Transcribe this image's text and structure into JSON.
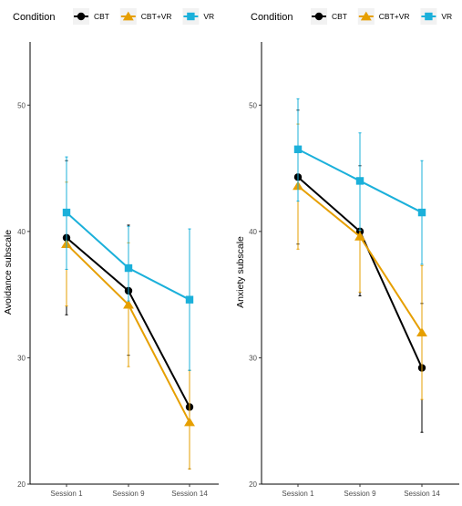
{
  "chart_data": [
    {
      "type": "line",
      "title": "",
      "xlabel": "",
      "ylabel": "Avoidance subscale",
      "categories": [
        "Session 1",
        "Session 9",
        "Session 14"
      ],
      "ylim": [
        20,
        55
      ],
      "yticks": [
        20,
        30,
        40,
        50
      ],
      "legend": {
        "title": "Condition",
        "placement": "top"
      },
      "series": [
        {
          "name": "CBT",
          "color": "#000000",
          "marker": "circle",
          "values": [
            39.5,
            35.3,
            26.1
          ],
          "err_low": [
            33.4,
            30.2,
            21.2
          ],
          "err_high": [
            45.6,
            40.5,
            29.0
          ]
        },
        {
          "name": "CBT+VR",
          "color": "#E69F00",
          "marker": "triangle",
          "values": [
            39.0,
            34.2,
            24.9
          ],
          "err_low": [
            34.1,
            29.3,
            21.2
          ],
          "err_high": [
            43.9,
            39.1,
            29.0
          ]
        },
        {
          "name": "VR",
          "color": "#1BB0DA",
          "marker": "square",
          "values": [
            41.5,
            37.1,
            34.6
          ],
          "err_low": [
            37.0,
            34.5,
            29.0
          ],
          "err_high": [
            45.9,
            40.4,
            40.2
          ]
        }
      ]
    },
    {
      "type": "line",
      "title": "",
      "xlabel": "",
      "ylabel": "Anxiety subscale",
      "categories": [
        "Session 1",
        "Session 9",
        "Session 14"
      ],
      "ylim": [
        20,
        55
      ],
      "yticks": [
        20,
        30,
        40,
        50
      ],
      "legend": {
        "title": "Condition",
        "placement": "top"
      },
      "series": [
        {
          "name": "CBT",
          "color": "#000000",
          "marker": "circle",
          "values": [
            44.3,
            40.0,
            29.2
          ],
          "err_low": [
            39.0,
            34.9,
            24.1
          ],
          "err_high": [
            49.6,
            45.2,
            34.3
          ]
        },
        {
          "name": "CBT+VR",
          "color": "#E69F00",
          "marker": "triangle",
          "values": [
            43.6,
            39.6,
            32.0
          ],
          "err_low": [
            38.6,
            35.2,
            26.7
          ],
          "err_high": [
            48.5,
            44.0,
            37.3
          ]
        },
        {
          "name": "VR",
          "color": "#1BB0DA",
          "marker": "square",
          "values": [
            46.5,
            44.0,
            41.5
          ],
          "err_low": [
            42.4,
            40.1,
            37.4
          ],
          "err_high": [
            50.5,
            47.8,
            45.6
          ]
        }
      ]
    }
  ]
}
